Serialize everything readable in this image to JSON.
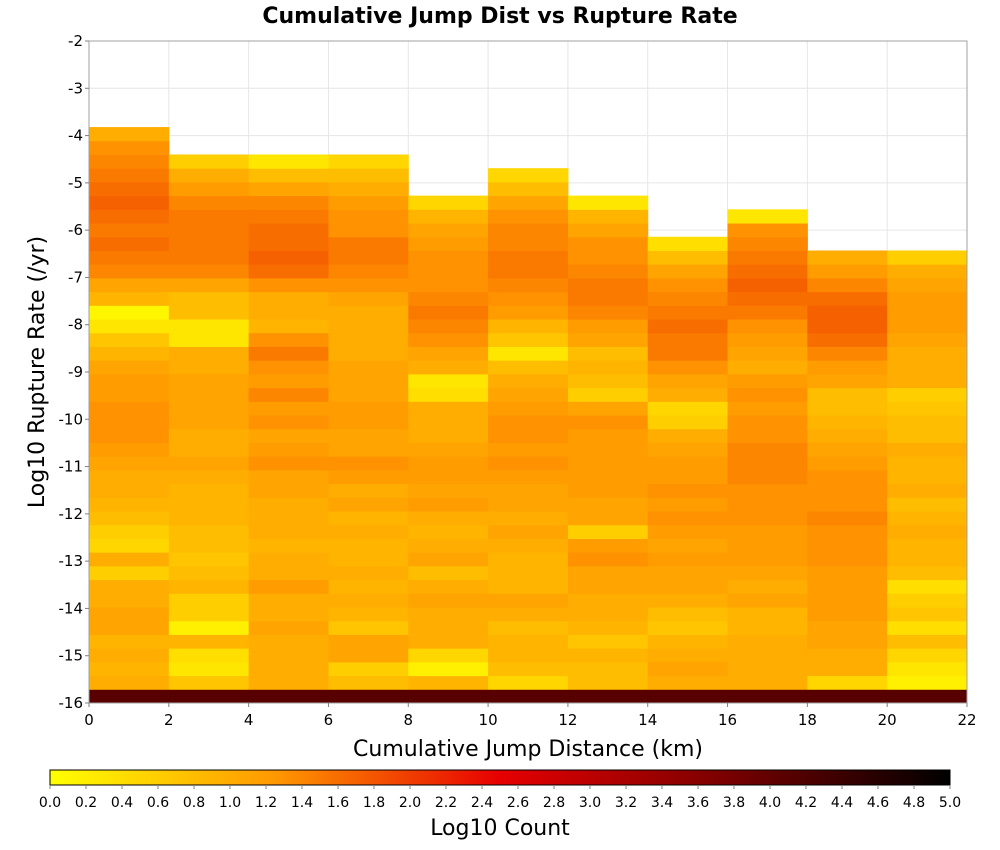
{
  "chart_data": {
    "type": "heatmap",
    "title": "Cumulative Jump Dist vs Rupture Rate",
    "xlabel": "Cumulative Jump Distance (km)",
    "ylabel": "Log10 Rupture Rate (/yr)",
    "colorbar_label": "Log10 Count",
    "xlim": [
      0,
      22
    ],
    "ylim": [
      -16,
      -2
    ],
    "x_ticks": [
      "0",
      "2",
      "4",
      "6",
      "8",
      "10",
      "12",
      "14",
      "16",
      "18",
      "20",
      "22"
    ],
    "y_ticks": [
      "-2",
      "-3",
      "-4",
      "-5",
      "-6",
      "-7",
      "-8",
      "-9",
      "-10",
      "-11",
      "-12",
      "-13",
      "-14",
      "-15",
      "-16"
    ],
    "colorbar_ticks": [
      "0.0",
      "0.2",
      "0.4",
      "0.6",
      "0.8",
      "1.0",
      "1.2",
      "1.4",
      "1.6",
      "1.8",
      "2.0",
      "2.2",
      "2.4",
      "2.6",
      "2.8",
      "3.0",
      "3.2",
      "3.4",
      "3.6",
      "3.8",
      "4.0",
      "4.2",
      "4.4",
      "4.6",
      "4.8",
      "5.0"
    ],
    "colorbar_range": [
      0,
      5
    ],
    "colormap": [
      "#ffff00",
      "#ff9800",
      "#e60000",
      "#7a0000",
      "#000000"
    ],
    "x_bin_width": 2,
    "y_bin_start": -16,
    "y_bin_width": 0.29,
    "columns": [
      {
        "x0": 0,
        "values": [
          4.1,
          1.0,
          0.9,
          1.0,
          0.9,
          1.1,
          1.1,
          1.0,
          1.0,
          0.6,
          1.0,
          0.5,
          0.6,
          0.8,
          0.9,
          1.0,
          1.0,
          1.1,
          1.2,
          1.3,
          1.3,
          1.3,
          1.2,
          1.2,
          1.1,
          0.9,
          0.7,
          0.3,
          0.1,
          0.9,
          1.1,
          1.4,
          1.5,
          1.6,
          1.5,
          1.6,
          1.7,
          1.6,
          1.5,
          1.4,
          1.3,
          1.0
        ]
      },
      {
        "x0": 2,
        "values": [
          4.1,
          0.7,
          0.3,
          0.4,
          0.9,
          0.2,
          0.6,
          0.6,
          0.9,
          0.8,
          0.7,
          0.8,
          0.8,
          0.9,
          0.9,
          0.9,
          1.0,
          1.1,
          1.0,
          1.0,
          1.1,
          1.1,
          1.1,
          1.1,
          1.0,
          1.0,
          0.3,
          0.3,
          0.8,
          0.8,
          1.1,
          1.4,
          1.5,
          1.5,
          1.5,
          1.5,
          1.4,
          1.2,
          1.0,
          0.6
        ]
      },
      {
        "x0": 4,
        "values": [
          4.1,
          1.0,
          1.0,
          1.0,
          1.0,
          1.1,
          1.0,
          1.0,
          1.2,
          1.0,
          1.0,
          0.9,
          1.0,
          1.0,
          1.0,
          1.1,
          1.1,
          1.3,
          1.2,
          1.1,
          1.3,
          1.2,
          1.4,
          1.2,
          1.3,
          1.5,
          1.3,
          0.9,
          1.0,
          1.0,
          1.3,
          1.6,
          1.7,
          1.6,
          1.6,
          1.5,
          1.4,
          1.1,
          0.8,
          0.3
        ]
      },
      {
        "x0": 6,
        "values": [
          4.1,
          0.8,
          0.6,
          1.1,
          1.1,
          0.7,
          0.9,
          1.0,
          0.9,
          1.0,
          0.9,
          0.9,
          1.0,
          0.9,
          1.1,
          1.0,
          1.2,
          1.3,
          1.1,
          1.1,
          1.2,
          1.2,
          1.1,
          1.1,
          1.1,
          1.0,
          1.0,
          1.0,
          1.0,
          1.1,
          1.3,
          1.4,
          1.5,
          1.5,
          1.3,
          1.3,
          1.2,
          1.0,
          0.8,
          0.5
        ]
      },
      {
        "x0": 8,
        "values": [
          4.1,
          0.9,
          0.2,
          0.5,
          1.0,
          1.0,
          1.0,
          1.1,
          1.0,
          0.8,
          1.1,
          1.0,
          0.9,
          1.0,
          1.2,
          1.1,
          1.2,
          1.2,
          1.1,
          1.0,
          1.0,
          1.0,
          0.4,
          0.3,
          1.0,
          1.1,
          1.3,
          1.4,
          1.5,
          1.4,
          1.3,
          1.3,
          1.3,
          1.2,
          1.1,
          0.9,
          0.5
        ]
      },
      {
        "x0": 10,
        "values": [
          4.1,
          0.5,
          0.8,
          0.9,
          0.9,
          0.8,
          1.0,
          1.1,
          0.9,
          0.9,
          0.9,
          1.0,
          1.1,
          1.0,
          1.1,
          1.1,
          1.2,
          1.3,
          1.2,
          1.3,
          1.3,
          1.2,
          1.1,
          1.0,
          0.8,
          0.3,
          0.7,
          0.9,
          1.2,
          1.3,
          1.4,
          1.5,
          1.5,
          1.4,
          1.4,
          1.3,
          1.1,
          0.8,
          0.5
        ]
      },
      {
        "x0": 12,
        "values": [
          4.1,
          0.8,
          0.8,
          0.9,
          0.7,
          0.9,
          1.0,
          1.0,
          1.1,
          1.1,
          1.3,
          1.2,
          0.6,
          1.1,
          1.1,
          1.2,
          1.2,
          1.2,
          1.2,
          1.2,
          1.3,
          1.1,
          0.6,
          0.8,
          0.9,
          0.8,
          1.1,
          1.2,
          1.4,
          1.5,
          1.5,
          1.4,
          1.3,
          1.3,
          1.1,
          0.9,
          0.3
        ]
      },
      {
        "x0": 14,
        "values": [
          4.1,
          1.0,
          1.1,
          1.0,
          0.9,
          0.7,
          0.8,
          1.0,
          1.1,
          1.1,
          1.2,
          1.1,
          1.2,
          1.3,
          1.2,
          1.3,
          1.2,
          1.2,
          1.1,
          1.0,
          0.6,
          0.5,
          1.0,
          1.1,
          1.3,
          1.5,
          1.5,
          1.6,
          1.5,
          1.4,
          1.3,
          1.1,
          0.8,
          0.4
        ]
      },
      {
        "x0": 16,
        "values": [
          4.1,
          1.0,
          1.0,
          1.0,
          1.0,
          0.9,
          0.9,
          1.1,
          1.0,
          1.1,
          1.2,
          1.2,
          1.2,
          1.3,
          1.3,
          1.3,
          1.4,
          1.4,
          1.4,
          1.3,
          1.3,
          1.2,
          1.3,
          1.2,
          1.0,
          1.1,
          1.2,
          1.3,
          1.5,
          1.6,
          1.7,
          1.6,
          1.5,
          1.4,
          1.3,
          0.3
        ]
      },
      {
        "x0": 18,
        "values": [
          4.1,
          0.5,
          1.0,
          1.0,
          1.1,
          1.1,
          1.2,
          1.2,
          1.2,
          1.2,
          1.3,
          1.3,
          1.3,
          1.4,
          1.3,
          1.3,
          1.3,
          1.2,
          1.1,
          1.0,
          0.9,
          0.8,
          0.8,
          1.1,
          1.2,
          1.4,
          1.6,
          1.7,
          1.7,
          1.6,
          1.4,
          1.2,
          1.0
        ]
      },
      {
        "x0": 20,
        "values": [
          4.1,
          0.2,
          0.3,
          0.5,
          0.8,
          0.4,
          0.7,
          0.6,
          0.4,
          0.8,
          0.9,
          0.9,
          1.0,
          0.9,
          0.8,
          1.0,
          0.9,
          0.9,
          1.0,
          0.8,
          0.8,
          0.7,
          0.6,
          1.0,
          1.0,
          1.0,
          1.1,
          1.2,
          1.2,
          1.2,
          1.1,
          1.0,
          0.6
        ]
      }
    ]
  }
}
